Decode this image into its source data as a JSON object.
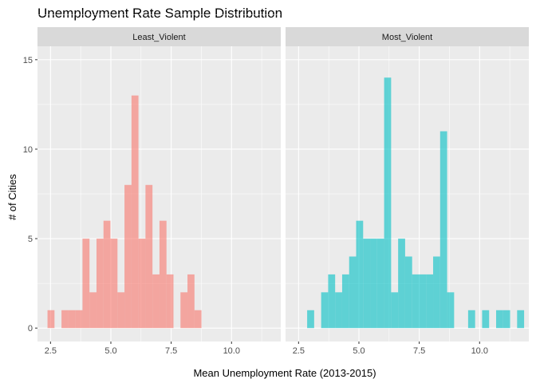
{
  "chart_data": {
    "type": "histogram",
    "title": "Unemployment Rate Sample Distribution",
    "xlabel": "Mean Unemployment Rate (2013-2015)",
    "ylabel": "# of Cities",
    "xlim": [
      1.96,
      12.04
    ],
    "ylim": [
      -0.75,
      15.75
    ],
    "x_ticks": [
      2.5,
      5.0,
      7.5,
      10.0
    ],
    "x_tick_labels": [
      "2.5",
      "5.0",
      "7.5",
      "10.0"
    ],
    "y_ticks": [
      0,
      5,
      10,
      15
    ],
    "y_tick_labels": [
      "0",
      "5",
      "10",
      "15"
    ],
    "bin_width": 0.29,
    "grid": true,
    "legend": "none",
    "facets": [
      {
        "label": "Least_Violent",
        "color": "#f8766d",
        "bars": [
          {
            "x": 2.52,
            "count": 1
          },
          {
            "x": 2.81,
            "count": 0
          },
          {
            "x": 3.1,
            "count": 1
          },
          {
            "x": 3.39,
            "count": 1
          },
          {
            "x": 3.68,
            "count": 1
          },
          {
            "x": 3.97,
            "count": 5
          },
          {
            "x": 4.26,
            "count": 2
          },
          {
            "x": 4.55,
            "count": 5
          },
          {
            "x": 4.84,
            "count": 6
          },
          {
            "x": 5.13,
            "count": 5
          },
          {
            "x": 5.42,
            "count": 2
          },
          {
            "x": 5.71,
            "count": 8
          },
          {
            "x": 6.0,
            "count": 13
          },
          {
            "x": 6.29,
            "count": 5
          },
          {
            "x": 6.58,
            "count": 8
          },
          {
            "x": 6.87,
            "count": 3
          },
          {
            "x": 7.16,
            "count": 6
          },
          {
            "x": 7.45,
            "count": 3
          },
          {
            "x": 7.74,
            "count": 0
          },
          {
            "x": 8.03,
            "count": 2
          },
          {
            "x": 8.32,
            "count": 3
          },
          {
            "x": 8.61,
            "count": 1
          }
        ]
      },
      {
        "label": "Most_Violent",
        "color": "#00bfc4",
        "bars": [
          {
            "x": 3.0,
            "count": 1
          },
          {
            "x": 3.29,
            "count": 0
          },
          {
            "x": 3.58,
            "count": 2
          },
          {
            "x": 3.87,
            "count": 3
          },
          {
            "x": 4.16,
            "count": 2
          },
          {
            "x": 4.45,
            "count": 3
          },
          {
            "x": 4.74,
            "count": 4
          },
          {
            "x": 5.03,
            "count": 6
          },
          {
            "x": 5.32,
            "count": 5
          },
          {
            "x": 5.61,
            "count": 5
          },
          {
            "x": 5.9,
            "count": 5
          },
          {
            "x": 6.19,
            "count": 14
          },
          {
            "x": 6.48,
            "count": 2
          },
          {
            "x": 6.77,
            "count": 5
          },
          {
            "x": 7.06,
            "count": 4
          },
          {
            "x": 7.35,
            "count": 3
          },
          {
            "x": 7.64,
            "count": 3
          },
          {
            "x": 7.93,
            "count": 3
          },
          {
            "x": 8.22,
            "count": 4
          },
          {
            "x": 8.51,
            "count": 11
          },
          {
            "x": 8.8,
            "count": 2
          },
          {
            "x": 9.09,
            "count": 0
          },
          {
            "x": 9.38,
            "count": 0
          },
          {
            "x": 9.67,
            "count": 1
          },
          {
            "x": 9.96,
            "count": 0
          },
          {
            "x": 10.25,
            "count": 1
          },
          {
            "x": 10.54,
            "count": 0
          },
          {
            "x": 10.83,
            "count": 1
          },
          {
            "x": 11.12,
            "count": 1
          },
          {
            "x": 11.41,
            "count": 0
          },
          {
            "x": 11.7,
            "count": 1
          }
        ]
      }
    ]
  }
}
